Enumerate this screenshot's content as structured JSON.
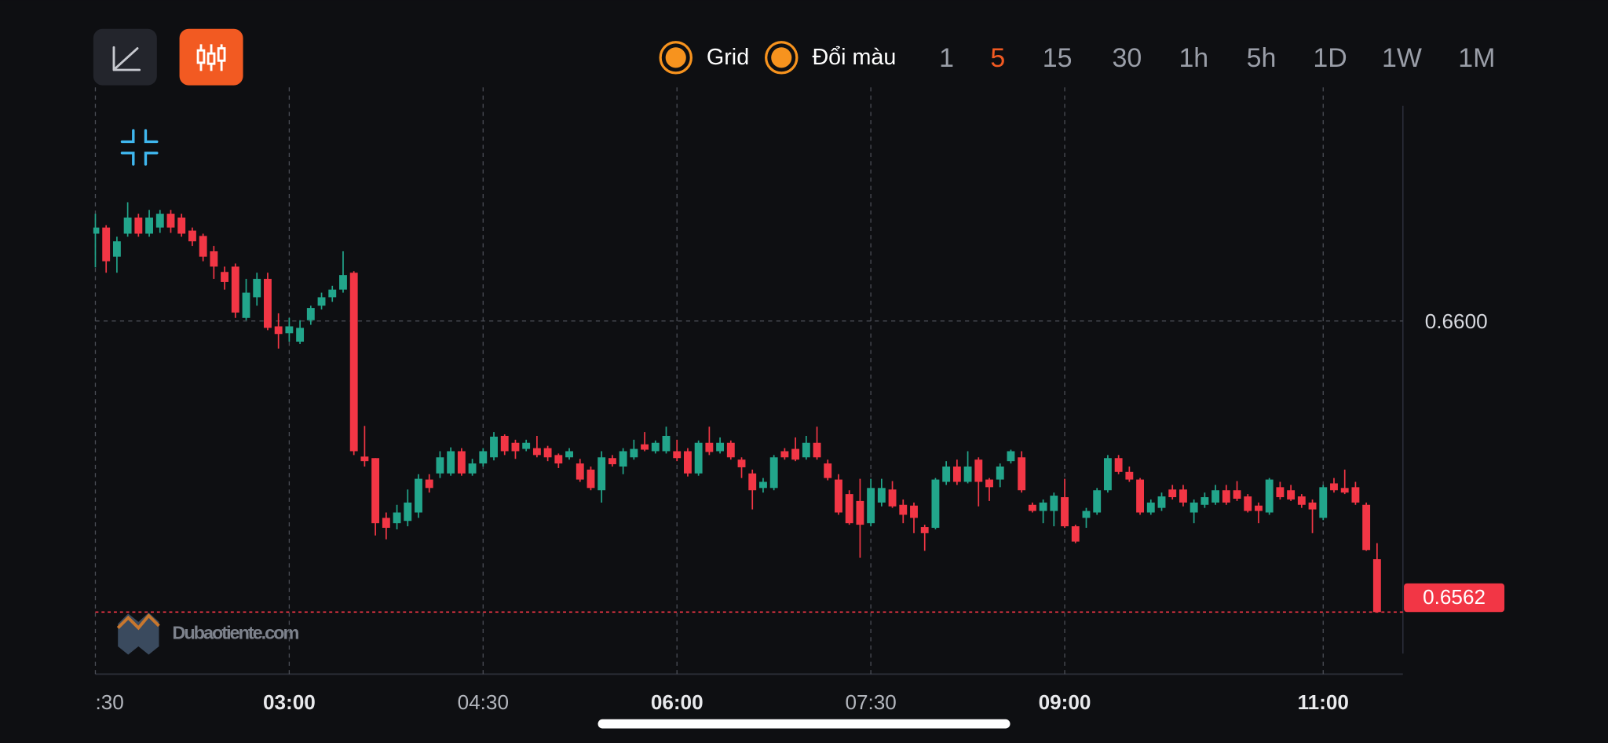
{
  "toolbar": {
    "toggles": [
      "Grid",
      "Đổi màu"
    ],
    "timeframes": [
      "1",
      "5",
      "15",
      "30",
      "1h",
      "5h",
      "1D",
      "1W",
      "1M"
    ],
    "active": "5"
  },
  "watermark": "Dubaotiente.com",
  "chart_data": {
    "type": "candlestick",
    "up_color": "#22a58b",
    "down_color": "#f23645",
    "grid": true,
    "ylim": [
      0.65539,
      0.66305
    ],
    "yticks": [
      {
        "value": 0.66,
        "label": "0.6600"
      }
    ],
    "last_price": {
      "value": 0.6562,
      "label": "0.6562"
    },
    "xlim": [
      0,
      121.4
    ],
    "xticks": [
      {
        "value": 0,
        "label": ":30",
        "bold": false
      },
      {
        "value": 18,
        "label": "03:00",
        "bold": true
      },
      {
        "value": 36,
        "label": "04:30",
        "bold": false
      },
      {
        "value": 54,
        "label": "06:00",
        "bold": true
      },
      {
        "value": 72,
        "label": "07:30",
        "bold": false
      },
      {
        "value": 90,
        "label": "09:00",
        "bold": true
      },
      {
        "value": 114,
        "label": "11:00",
        "bold": true
      }
    ],
    "candles": [
      [
        0.66114,
        0.6614,
        0.6607,
        0.66122
      ],
      [
        0.66122,
        0.66125,
        0.66063,
        0.66078
      ],
      [
        0.66084,
        0.6611,
        0.66063,
        0.66104
      ],
      [
        0.66114,
        0.66155,
        0.6611,
        0.66135
      ],
      [
        0.66135,
        0.6614,
        0.6611,
        0.66114
      ],
      [
        0.66114,
        0.66145,
        0.6611,
        0.66135
      ],
      [
        0.66122,
        0.66145,
        0.66115,
        0.6614
      ],
      [
        0.6614,
        0.66145,
        0.66115,
        0.66122
      ],
      [
        0.66135,
        0.6614,
        0.6611,
        0.66114
      ],
      [
        0.66118,
        0.66122,
        0.66098,
        0.66104
      ],
      [
        0.66111,
        0.66114,
        0.66078,
        0.66084
      ],
      [
        0.66091,
        0.66098,
        0.66055,
        0.66071
      ],
      [
        0.66064,
        0.66071,
        0.66041,
        0.66051
      ],
      [
        0.66071,
        0.66075,
        0.66004,
        0.66011
      ],
      [
        0.66004,
        0.66055,
        0.66001,
        0.66037
      ],
      [
        0.66031,
        0.66063,
        0.6602,
        0.66055
      ],
      [
        0.66055,
        0.66063,
        0.65988,
        0.65991
      ],
      [
        0.65993,
        0.6601,
        0.65964,
        0.65983
      ],
      [
        0.65984,
        0.66004,
        0.65973,
        0.65993
      ],
      [
        0.65973,
        0.66001,
        0.6597,
        0.65991
      ],
      [
        0.66001,
        0.6602,
        0.65995,
        0.66017
      ],
      [
        0.6602,
        0.66037,
        0.66015,
        0.66031
      ],
      [
        0.66031,
        0.66046,
        0.66025,
        0.66041
      ],
      [
        0.66041,
        0.66091,
        0.66037,
        0.6606
      ],
      [
        0.66063,
        0.66065,
        0.65825,
        0.6583
      ],
      [
        0.65823,
        0.65863,
        0.6581,
        0.65817
      ],
      [
        0.65821,
        0.65821,
        0.6572,
        0.65736
      ],
      [
        0.65743,
        0.6575,
        0.65715,
        0.6573
      ],
      [
        0.65736,
        0.6576,
        0.65728,
        0.6575
      ],
      [
        0.65739,
        0.6578,
        0.65732,
        0.65763
      ],
      [
        0.6575,
        0.658,
        0.65743,
        0.65794
      ],
      [
        0.65793,
        0.658,
        0.65776,
        0.65782
      ],
      [
        0.65801,
        0.6583,
        0.65795,
        0.65822
      ],
      [
        0.65801,
        0.65835,
        0.65798,
        0.6583
      ],
      [
        0.6583,
        0.65834,
        0.65798,
        0.65801
      ],
      [
        0.65801,
        0.6582,
        0.65798,
        0.65814
      ],
      [
        0.65814,
        0.65834,
        0.6581,
        0.6583
      ],
      [
        0.65822,
        0.65855,
        0.65818,
        0.65849
      ],
      [
        0.6585,
        0.65852,
        0.65825,
        0.6583
      ],
      [
        0.65841,
        0.65845,
        0.6582,
        0.6583
      ],
      [
        0.65833,
        0.65845,
        0.6583,
        0.65841
      ],
      [
        0.65834,
        0.6585,
        0.65822,
        0.65825
      ],
      [
        0.65834,
        0.65837,
        0.65817,
        0.65822
      ],
      [
        0.65825,
        0.65827,
        0.65808,
        0.65814
      ],
      [
        0.65822,
        0.65834,
        0.65819,
        0.6583
      ],
      [
        0.65814,
        0.6582,
        0.6579,
        0.65793
      ],
      [
        0.65806,
        0.6581,
        0.65779,
        0.65782
      ],
      [
        0.65779,
        0.6583,
        0.65763,
        0.65822
      ],
      [
        0.65821,
        0.65825,
        0.6581,
        0.65813
      ],
      [
        0.6581,
        0.65834,
        0.658,
        0.6583
      ],
      [
        0.65822,
        0.65845,
        0.65819,
        0.65833
      ],
      [
        0.65839,
        0.65855,
        0.6583,
        0.65832
      ],
      [
        0.6583,
        0.65844,
        0.65827,
        0.65841
      ],
      [
        0.6583,
        0.65862,
        0.65827,
        0.6585
      ],
      [
        0.6583,
        0.65845,
        0.65817,
        0.65821
      ],
      [
        0.6583,
        0.65834,
        0.65797,
        0.65801
      ],
      [
        0.65801,
        0.65844,
        0.65798,
        0.65841
      ],
      [
        0.65841,
        0.65862,
        0.65825,
        0.65829
      ],
      [
        0.6583,
        0.65848,
        0.65827,
        0.65841
      ],
      [
        0.65841,
        0.65844,
        0.65819,
        0.65822
      ],
      [
        0.65819,
        0.65822,
        0.65795,
        0.65809
      ],
      [
        0.65801,
        0.65806,
        0.65754,
        0.65779
      ],
      [
        0.65782,
        0.65795,
        0.65776,
        0.6579
      ],
      [
        0.65782,
        0.65825,
        0.65779,
        0.65822
      ],
      [
        0.6583,
        0.65834,
        0.65819,
        0.65822
      ],
      [
        0.65833,
        0.65848,
        0.65817,
        0.65819
      ],
      [
        0.65822,
        0.6585,
        0.65819,
        0.65841
      ],
      [
        0.65841,
        0.65862,
        0.65819,
        0.65822
      ],
      [
        0.65814,
        0.65819,
        0.65792,
        0.65795
      ],
      [
        0.65793,
        0.658,
        0.65747,
        0.6575
      ],
      [
        0.65774,
        0.65779,
        0.65734,
        0.65736
      ],
      [
        0.65765,
        0.65794,
        0.65691,
        0.65734
      ],
      [
        0.65736,
        0.65794,
        0.65732,
        0.65782
      ],
      [
        0.65763,
        0.65794,
        0.65758,
        0.65782
      ],
      [
        0.6578,
        0.65791,
        0.65756,
        0.65758
      ],
      [
        0.6576,
        0.65767,
        0.65736,
        0.65747
      ],
      [
        0.65759,
        0.65763,
        0.65723,
        0.65743
      ],
      [
        0.65731,
        0.65734,
        0.657,
        0.65723
      ],
      [
        0.6573,
        0.65795,
        0.65728,
        0.65793
      ],
      [
        0.6579,
        0.65817,
        0.65786,
        0.6581
      ],
      [
        0.6581,
        0.65819,
        0.65786,
        0.6579
      ],
      [
        0.6579,
        0.6583,
        0.65788,
        0.6581
      ],
      [
        0.65819,
        0.65822,
        0.65758,
        0.6579
      ],
      [
        0.65793,
        0.65795,
        0.65765,
        0.65783
      ],
      [
        0.65793,
        0.65814,
        0.65783,
        0.6581
      ],
      [
        0.65817,
        0.65832,
        0.65814,
        0.6583
      ],
      [
        0.65822,
        0.6583,
        0.65776,
        0.65779
      ],
      [
        0.6576,
        0.65763,
        0.6575,
        0.65752
      ],
      [
        0.65752,
        0.65767,
        0.65736,
        0.65763
      ],
      [
        0.65752,
        0.65776,
        0.65732,
        0.65772
      ],
      [
        0.6577,
        0.65794,
        0.6573,
        0.65732
      ],
      [
        0.65732,
        0.65734,
        0.6571,
        0.65712
      ],
      [
        0.65743,
        0.65756,
        0.6573,
        0.65752
      ],
      [
        0.6575,
        0.65782,
        0.65747,
        0.65779
      ],
      [
        0.65779,
        0.65825,
        0.65776,
        0.65821
      ],
      [
        0.65821,
        0.65825,
        0.658,
        0.65803
      ],
      [
        0.65803,
        0.6581,
        0.6579,
        0.65793
      ],
      [
        0.65793,
        0.65795,
        0.65747,
        0.6575
      ],
      [
        0.6575,
        0.65767,
        0.65747,
        0.65763
      ],
      [
        0.65756,
        0.65776,
        0.65752,
        0.65771
      ],
      [
        0.6578,
        0.65786,
        0.65767,
        0.6577
      ],
      [
        0.6578,
        0.65786,
        0.65758,
        0.65763
      ],
      [
        0.6575,
        0.65767,
        0.65736,
        0.65763
      ],
      [
        0.6576,
        0.65776,
        0.65756,
        0.6577
      ],
      [
        0.65763,
        0.65786,
        0.6576,
        0.65779
      ],
      [
        0.65779,
        0.65786,
        0.6576,
        0.65763
      ],
      [
        0.65779,
        0.65791,
        0.65765,
        0.65768
      ],
      [
        0.65771,
        0.65774,
        0.6575,
        0.65752
      ],
      [
        0.65759,
        0.65763,
        0.65736,
        0.65752
      ],
      [
        0.6575,
        0.65795,
        0.65747,
        0.65793
      ],
      [
        0.65783,
        0.6579,
        0.65767,
        0.6577
      ],
      [
        0.65779,
        0.65786,
        0.65765,
        0.65767
      ],
      [
        0.65771,
        0.65774,
        0.65756,
        0.6576
      ],
      [
        0.65763,
        0.65767,
        0.65723,
        0.65754
      ],
      [
        0.65743,
        0.65786,
        0.6574,
        0.65783
      ],
      [
        0.65788,
        0.65795,
        0.65776,
        0.65779
      ],
      [
        0.65782,
        0.65806,
        0.65774,
        0.65776
      ],
      [
        0.65783,
        0.6579,
        0.6576,
        0.65763
      ],
      [
        0.6576,
        0.65763,
        0.657,
        0.65701
      ],
      [
        0.65689,
        0.6571,
        0.6562,
        0.6562
      ]
    ]
  }
}
